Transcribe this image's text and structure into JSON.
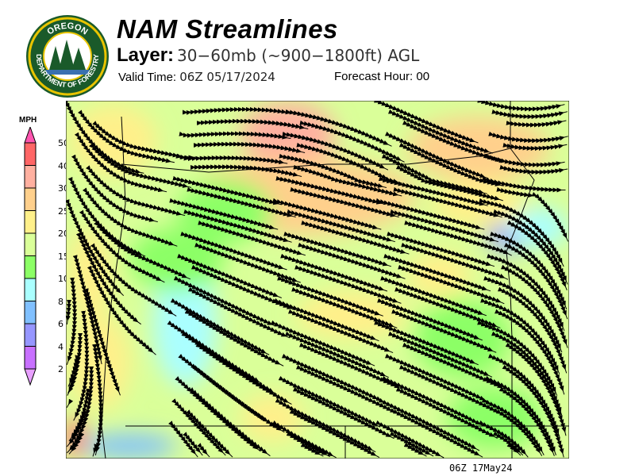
{
  "logo": {
    "text_top": "OREGON",
    "text_bottom": "DEPARTMENT OF FORESTRY"
  },
  "header": {
    "title": "NAM Streamlines",
    "layer_label": "Layer:",
    "layer_value": "30−60mb (~900−1800ft) AGL",
    "valid_label": "Valid Time:",
    "valid_value": "06Z 05/17/2024",
    "forecast_label": "Forecast Hour:",
    "forecast_value": "00"
  },
  "legend": {
    "unit": "MPH",
    "labels": [
      "50",
      "40",
      "30",
      "25",
      "20",
      "15",
      "10",
      "8",
      "6",
      "4",
      "2"
    ],
    "colors": [
      "#ff6666",
      "#ffb0a0",
      "#ffd08c",
      "#fff08a",
      "#daff99",
      "#8cff66",
      "#aaffff",
      "#80c0ff",
      "#9696ff",
      "#c870ff"
    ],
    "over_color": "#ff55b0",
    "under_color": "#e8a0ff"
  },
  "map": {
    "base_color": "#daff99",
    "boundary_color": "#000000",
    "streamline_color": "#000000"
  },
  "footer": {
    "stamp": "06Z 17May24"
  }
}
